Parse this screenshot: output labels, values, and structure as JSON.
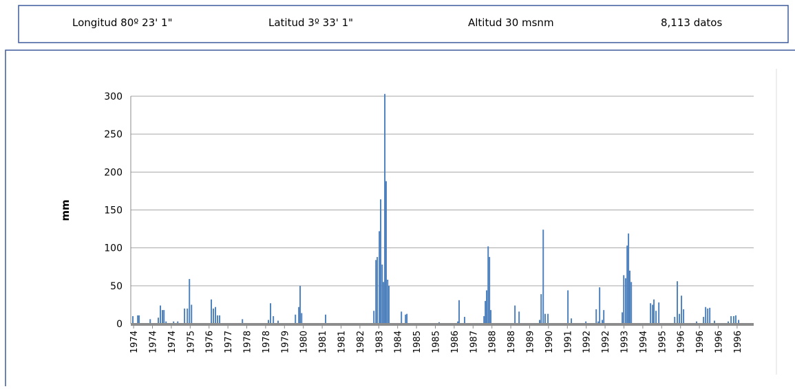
{
  "header": {
    "items": [
      "Longitud 80º 23' 1\"",
      "Latitud 3º 33' 1\"",
      "Altitud 30 msnm",
      "8,113  datos"
    ]
  },
  "chart_data": {
    "type": "bar",
    "y_label": "mm",
    "color": "#4f81bd",
    "grid": true,
    "ylim": [
      0,
      300
    ],
    "yticks": [
      0,
      50,
      100,
      150,
      200,
      250,
      300
    ],
    "xlim": [
      -0.15,
      32.88
    ],
    "xticks": [
      {
        "value": 0,
        "label": "1974"
      },
      {
        "value": 1,
        "label": "1974"
      },
      {
        "value": 2,
        "label": "1974"
      },
      {
        "value": 3,
        "label": "1975"
      },
      {
        "value": 4,
        "label": "1976"
      },
      {
        "value": 5,
        "label": "1977"
      },
      {
        "value": 6,
        "label": "1978"
      },
      {
        "value": 7,
        "label": "1978"
      },
      {
        "value": 8,
        "label": "1979"
      },
      {
        "value": 9,
        "label": "1980"
      },
      {
        "value": 10,
        "label": "1981"
      },
      {
        "value": 11,
        "label": "1981"
      },
      {
        "value": 12,
        "label": "1982"
      },
      {
        "value": 13,
        "label": "1983"
      },
      {
        "value": 14,
        "label": "1984"
      },
      {
        "value": 15,
        "label": "1985"
      },
      {
        "value": 16,
        "label": "1985"
      },
      {
        "value": 17,
        "label": "1986"
      },
      {
        "value": 18,
        "label": "1987"
      },
      {
        "value": 19,
        "label": "1988"
      },
      {
        "value": 20,
        "label": "1988"
      },
      {
        "value": 21,
        "label": "1989"
      },
      {
        "value": 22,
        "label": "1990"
      },
      {
        "value": 23,
        "label": "1991"
      },
      {
        "value": 24,
        "label": "1992"
      },
      {
        "value": 25,
        "label": "1992"
      },
      {
        "value": 26,
        "label": "1993"
      },
      {
        "value": 27,
        "label": "1994"
      },
      {
        "value": 28,
        "label": "1995"
      },
      {
        "value": 29,
        "label": "1996"
      },
      {
        "value": 30,
        "label": "1996"
      },
      {
        "value": 31,
        "label": "1996"
      },
      {
        "value": 32,
        "label": "1996"
      }
    ],
    "x": [
      -0.04,
      0.22,
      0.29,
      0.88,
      1.31,
      1.42,
      1.53,
      1.61,
      1.72,
      2.12,
      2.34,
      2.7,
      2.85,
      2.96,
      3.07,
      4.12,
      4.23,
      4.34,
      4.45,
      4.56,
      5.77,
      7.15,
      7.26,
      7.41,
      7.66,
      8.58,
      8.76,
      8.83,
      8.91,
      10.18,
      12.74,
      12.85,
      12.92,
      13.03,
      13.1,
      13.18,
      13.25,
      13.32,
      13.39,
      13.47,
      13.54,
      14.2,
      14.42,
      14.49,
      16.2,
      17.19,
      17.26,
      17.55,
      18.58,
      18.65,
      18.72,
      18.8,
      18.87,
      18.94,
      20.22,
      20.44,
      21.53,
      21.61,
      21.72,
      21.82,
      21.97,
      23.03,
      23.21,
      23.98,
      24.53,
      24.64,
      24.71,
      24.85,
      24.93,
      25.91,
      25.99,
      26.09,
      26.17,
      26.24,
      26.31,
      26.39,
      27.41,
      27.52,
      27.59,
      27.7,
      27.85,
      28.69,
      28.83,
      28.94,
      29.05,
      29.16,
      29.85,
      30.22,
      30.33,
      30.44,
      30.55,
      30.8,
      31.53,
      31.68,
      31.82,
      31.93,
      32.08
    ],
    "values": [
      10,
      11,
      11,
      6,
      8,
      24,
      18,
      18,
      3,
      3,
      3,
      20,
      20,
      59,
      25,
      32,
      20,
      22,
      11,
      11,
      6,
      5,
      27,
      10,
      4,
      12,
      22,
      50,
      14,
      12,
      17,
      84,
      88,
      122,
      164,
      78,
      55,
      303,
      188,
      58,
      50,
      16,
      12,
      13,
      2,
      3,
      31,
      9,
      10,
      30,
      44,
      102,
      88,
      18,
      24,
      16,
      5,
      39,
      124,
      13,
      13,
      44,
      7,
      3,
      19,
      3,
      48,
      5,
      18,
      15,
      64,
      60,
      103,
      119,
      70,
      55,
      27,
      25,
      32,
      17,
      28,
      9,
      56,
      13,
      37,
      19,
      3,
      9,
      22,
      20,
      21,
      4,
      3,
      10,
      10,
      11,
      5
    ]
  }
}
